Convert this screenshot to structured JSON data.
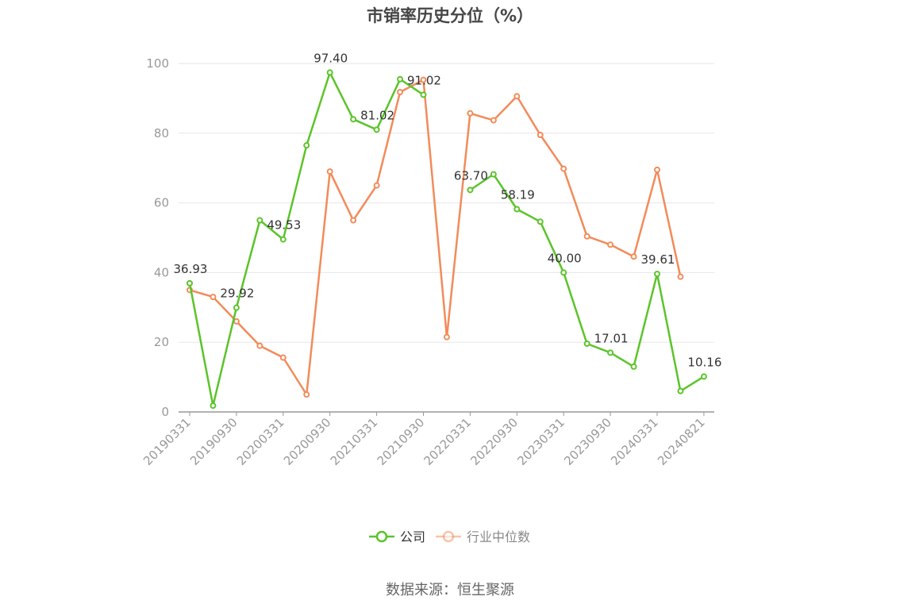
{
  "title": "市销率历史分位（%）",
  "source": "数据来源：恒生聚源",
  "colors": {
    "company": "#5bc42a",
    "industry": "#f28b5a",
    "grid": "#e6e6ee",
    "axis": "#999999"
  },
  "legend": {
    "company": "公司",
    "industry": "行业中位数"
  },
  "chart_data": {
    "type": "line",
    "title": "市销率历史分位（%）",
    "ylim": [
      0,
      100
    ],
    "yticks": [
      0,
      20,
      40,
      60,
      80,
      100
    ],
    "x": [
      "20190331",
      "20190630",
      "20190930",
      "20191231",
      "20200331",
      "20200630",
      "20200930",
      "20201231",
      "20210331",
      "20210630",
      "20210930",
      "20211231",
      "20220331",
      "20220630",
      "20220930",
      "20221231",
      "20230331",
      "20230630",
      "20230930",
      "20231231",
      "20240331",
      "20240630",
      "20240821"
    ],
    "xtick_labels": [
      "20190331",
      "20190930",
      "20200331",
      "20200930",
      "20210331",
      "20210930",
      "20220331",
      "20220930",
      "20230331",
      "20230930",
      "20240331",
      "20240821"
    ],
    "grid": true,
    "legend_position": "bottom",
    "series": [
      {
        "name": "公司",
        "values": [
          36.93,
          1.8,
          29.92,
          55.0,
          49.53,
          76.5,
          97.4,
          84.0,
          81.02,
          95.5,
          91.02,
          null,
          63.7,
          68.2,
          58.19,
          54.6,
          40.0,
          19.6,
          17.01,
          13.0,
          39.61,
          6.0,
          10.16
        ],
        "labels": [
          "36.93",
          null,
          "29.92",
          null,
          "49.53",
          null,
          "97.40",
          null,
          "81.02",
          null,
          "91.02",
          null,
          "63.70",
          null,
          "58.19",
          null,
          "40.00",
          null,
          "17.01",
          null,
          "39.61",
          null,
          "10.16"
        ]
      },
      {
        "name": "行业中位数",
        "values": [
          35.0,
          33.0,
          26.0,
          19.0,
          15.6,
          5.0,
          69.0,
          55.0,
          65.0,
          91.8,
          95.3,
          21.5,
          85.7,
          83.7,
          90.6,
          79.5,
          69.8,
          50.4,
          48.0,
          44.6,
          69.5,
          38.8,
          null
        ]
      }
    ]
  }
}
